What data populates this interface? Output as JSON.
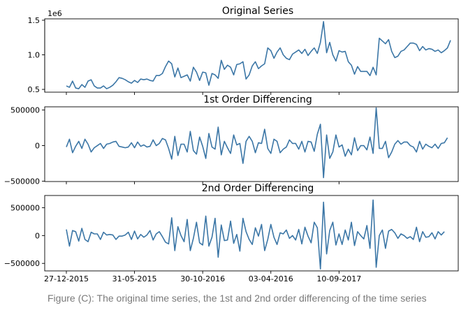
{
  "caption": "Figure (C): The original time series, the 1st and 2nd order differencing of the time series",
  "chart_data": [
    {
      "type": "line",
      "title": "Original Series",
      "xlabel": "",
      "ylabel": "",
      "y_scale_label": "1e6",
      "ylim": [
        0.46,
        1.52
      ],
      "yticks": [
        0.5,
        1.0,
        1.5
      ],
      "ytick_labels": [
        "0.5",
        "1.0",
        "1.5"
      ],
      "grid": false,
      "color": "#3b76a6",
      "series": [
        {
          "values": [
            0.55,
            0.53,
            0.62,
            0.52,
            0.51,
            0.57,
            0.53,
            0.62,
            0.64,
            0.55,
            0.52,
            0.52,
            0.55,
            0.51,
            0.53,
            0.56,
            0.61,
            0.67,
            0.66,
            0.64,
            0.61,
            0.59,
            0.63,
            0.6,
            0.65,
            0.64,
            0.65,
            0.63,
            0.62,
            0.7,
            0.7,
            0.73,
            0.83,
            0.91,
            0.87,
            0.68,
            0.81,
            0.67,
            0.69,
            0.71,
            0.62,
            0.82,
            0.75,
            0.63,
            0.75,
            0.74,
            0.56,
            0.73,
            0.71,
            0.66,
            0.92,
            0.79,
            0.85,
            0.82,
            0.71,
            0.86,
            0.87,
            0.9,
            0.65,
            0.71,
            0.84,
            0.9,
            0.8,
            0.84,
            0.87,
            1.1,
            1.06,
            0.95,
            1.04,
            1.1,
            1.0,
            0.95,
            0.93,
            1.01,
            1.04,
            1.07,
            1.02,
            1.08,
            0.99,
            1.05,
            1.1,
            1.02,
            1.18,
            1.48,
            1.03,
            1.18,
            1.0,
            0.91,
            1.06,
            1.04,
            1.05,
            0.9,
            0.85,
            0.72,
            0.83,
            0.76,
            0.76,
            0.76,
            0.7,
            0.82,
            0.71,
            1.24,
            1.2,
            1.16,
            1.22,
            1.05,
            0.96,
            0.98,
            1.05,
            1.07,
            1.12,
            1.17,
            1.17,
            1.15,
            1.06,
            1.12,
            1.07,
            1.09,
            1.08,
            1.05,
            1.07,
            1.03,
            1.06,
            1.1,
            1.21
          ]
        }
      ]
    },
    {
      "type": "line",
      "title": "1st Order Differencing",
      "xlabel": "",
      "ylabel": "",
      "ylim": [
        -505000,
        545000
      ],
      "yticks": [
        500000,
        0,
        -500000
      ],
      "ytick_labels": [
        "500000",
        "0",
        "−500000"
      ],
      "grid": false,
      "color": "#3b76a6",
      "series": [
        {
          "values": [
            -20000,
            90000,
            -100000,
            -10000,
            60000,
            -40000,
            90000,
            20000,
            -90000,
            -30000,
            0,
            30000,
            -40000,
            20000,
            30000,
            50000,
            60000,
            -10000,
            -20000,
            -30000,
            -20000,
            40000,
            -30000,
            50000,
            -10000,
            10000,
            -20000,
            -10000,
            80000,
            0,
            30000,
            100000,
            80000,
            -40000,
            -190000,
            130000,
            -140000,
            20000,
            20000,
            -90000,
            200000,
            -70000,
            -120000,
            120000,
            -10000,
            -180000,
            170000,
            -20000,
            -50000,
            260000,
            -130000,
            60000,
            -30000,
            -110000,
            150000,
            10000,
            30000,
            -250000,
            60000,
            130000,
            60000,
            -100000,
            40000,
            30000,
            230000,
            -40000,
            -110000,
            90000,
            60000,
            -100000,
            -50000,
            -20000,
            80000,
            30000,
            30000,
            -50000,
            60000,
            -90000,
            60000,
            50000,
            -80000,
            160000,
            300000,
            -450000,
            150000,
            -180000,
            -90000,
            150000,
            -20000,
            10000,
            -150000,
            -50000,
            -130000,
            110000,
            -70000,
            0,
            0,
            -60000,
            120000,
            -110000,
            530000,
            -40000,
            -40000,
            60000,
            -170000,
            -90000,
            20000,
            70000,
            20000,
            50000,
            50000,
            0,
            -20000,
            -90000,
            60000,
            -50000,
            20000,
            -10000,
            -30000,
            20000,
            -40000,
            30000,
            40000,
            110000
          ]
        }
      ]
    },
    {
      "type": "line",
      "title": "2nd Order Differencing",
      "xlabel": "",
      "ylabel": "",
      "ylim": [
        -635000,
        720000
      ],
      "yticks": [
        500000,
        0,
        -500000
      ],
      "ytick_labels": [
        "500000",
        "0",
        "−500000"
      ],
      "grid": false,
      "color": "#3b76a6",
      "series": [
        {
          "values": [
            110000,
            -190000,
            90000,
            70000,
            -100000,
            130000,
            -70000,
            -110000,
            60000,
            30000,
            30000,
            -70000,
            60000,
            10000,
            20000,
            10000,
            -70000,
            -10000,
            -10000,
            10000,
            60000,
            -70000,
            80000,
            -60000,
            20000,
            -30000,
            10000,
            90000,
            -80000,
            30000,
            70000,
            -20000,
            -120000,
            -150000,
            320000,
            -270000,
            160000,
            0,
            -110000,
            290000,
            -270000,
            -50000,
            240000,
            -130000,
            -170000,
            350000,
            -190000,
            -30000,
            310000,
            -390000,
            190000,
            -90000,
            -80000,
            260000,
            -140000,
            20000,
            -280000,
            310000,
            70000,
            -70000,
            -160000,
            140000,
            -10000,
            200000,
            -270000,
            -70000,
            200000,
            -30000,
            -160000,
            50000,
            30000,
            100000,
            -50000,
            0,
            -80000,
            110000,
            -150000,
            150000,
            -10000,
            -130000,
            240000,
            140000,
            -600000,
            600000,
            -330000,
            90000,
            240000,
            -170000,
            30000,
            -160000,
            100000,
            -80000,
            240000,
            -180000,
            70000,
            0,
            -60000,
            180000,
            -230000,
            640000,
            -570000,
            0,
            100000,
            -230000,
            80000,
            110000,
            50000,
            -50000,
            30000,
            0,
            -50000,
            -20000,
            -70000,
            150000,
            -110000,
            70000,
            -30000,
            -20000,
            50000,
            -60000,
            70000,
            10000,
            70000
          ]
        }
      ]
    }
  ],
  "x_axis": {
    "tick_labels": [
      "27-12-2015",
      "31-05-2015",
      "30-10-2016",
      "03-04-2016",
      "10-09-2017"
    ],
    "tick_index": [
      0,
      22,
      44,
      66,
      88
    ]
  }
}
